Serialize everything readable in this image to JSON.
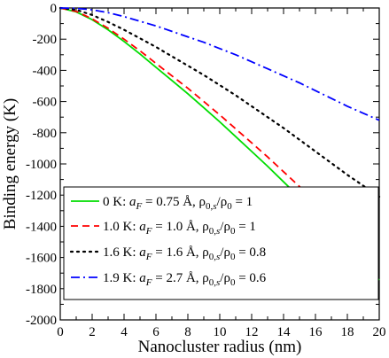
{
  "chart_data": {
    "type": "line",
    "xlabel": "Nanocluster radius (nm)",
    "ylabel": "Binding energy (K)",
    "xlim": [
      0,
      20
    ],
    "ylim": [
      -2000,
      0
    ],
    "xticks": [
      0,
      2,
      4,
      6,
      8,
      10,
      12,
      14,
      16,
      18,
      20
    ],
    "yticks": [
      0,
      -200,
      -400,
      -600,
      -800,
      -1000,
      -1200,
      -1400,
      -1600,
      -1800,
      -2000
    ],
    "grid": false,
    "legend_position": "lower-left",
    "series": [
      {
        "temperature": "0 K:",
        "label_rest": "= 0.75 Å, ρ0,s/ρ0 = 1",
        "aF": "0.75 Å",
        "rho_ratio": "1",
        "color": "#00dd00",
        "style": "solid",
        "x": [
          0,
          1,
          2,
          3,
          4,
          5,
          6,
          7,
          8,
          9,
          10,
          11,
          12,
          13,
          14,
          15,
          16,
          17,
          18,
          19,
          20
        ],
        "y": [
          0,
          -25,
          -75,
          -140,
          -215,
          -295,
          -380,
          -465,
          -550,
          -640,
          -730,
          -825,
          -920,
          -1015,
          -1115,
          -1215,
          -1320,
          -1425,
          -1530,
          -1635,
          -1745
        ]
      },
      {
        "temperature": "1.0 K:",
        "label_rest": "= 1.0 Å, ρ0,s/ρ0 = 1",
        "aF": "1.0 Å",
        "rho_ratio": "1",
        "color": "#ff0000",
        "style": "dashed",
        "x": [
          0,
          1,
          2,
          3,
          4,
          5,
          6,
          7,
          8,
          9,
          10,
          11,
          12,
          13,
          14,
          15,
          16,
          17,
          18,
          19,
          20
        ],
        "y": [
          0,
          -22,
          -70,
          -130,
          -200,
          -275,
          -355,
          -435,
          -515,
          -600,
          -685,
          -775,
          -865,
          -955,
          -1050,
          -1145,
          -1240,
          -1340,
          -1440,
          -1545,
          -1650
        ]
      },
      {
        "temperature": "1.6 K:",
        "label_rest": "= 1.6 Å, ρ0,s/ρ0 = 0.8",
        "aF": "1.6 Å",
        "rho_ratio": "0.8",
        "color": "#000000",
        "style": "dotted",
        "x": [
          0,
          1,
          2,
          3,
          4,
          5,
          6,
          7,
          8,
          9,
          10,
          11,
          12,
          13,
          14,
          15,
          16,
          17,
          18,
          19,
          20
        ],
        "y": [
          0,
          -12,
          -45,
          -90,
          -140,
          -195,
          -250,
          -310,
          -370,
          -430,
          -495,
          -560,
          -630,
          -700,
          -770,
          -845,
          -920,
          -995,
          -1070,
          -1140,
          -1210
        ]
      },
      {
        "temperature": "1.9 K:",
        "label_rest": "= 2.7 Å, ρ0,s/ρ0 = 0.6",
        "aF": "2.7 Å",
        "rho_ratio": "0.6",
        "color": "#0000ff",
        "style": "dashdot",
        "x": [
          0,
          1,
          2,
          3,
          4,
          5,
          6,
          7,
          8,
          9,
          10,
          11,
          12,
          13,
          14,
          15,
          16,
          17,
          18,
          19,
          20
        ],
        "y": [
          0,
          -2,
          -12,
          -30,
          -55,
          -85,
          -115,
          -150,
          -185,
          -220,
          -260,
          -300,
          -345,
          -390,
          -435,
          -480,
          -530,
          -580,
          -630,
          -675,
          -720
        ]
      }
    ]
  }
}
